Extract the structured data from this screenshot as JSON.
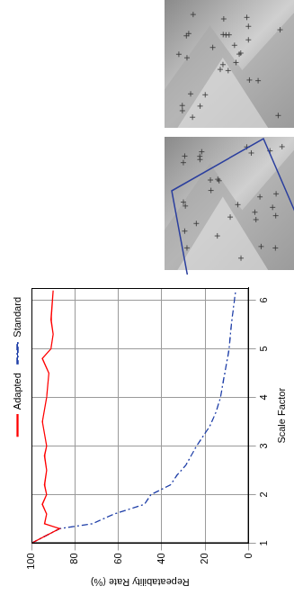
{
  "chart_data": {
    "type": "line",
    "x_label": "Scale Factor",
    "y_label": "Repeatability Rate (%)",
    "xlim": [
      1,
      6.25
    ],
    "xticks": [
      1,
      2,
      3,
      4,
      5,
      6
    ],
    "ylim": [
      0,
      100
    ],
    "yticks": [
      0,
      20,
      40,
      60,
      80,
      100
    ],
    "grid": true,
    "legend": "top-right",
    "series": [
      {
        "name": "Adapted",
        "color": "#ff0000",
        "line_style": "solid",
        "x": [
          1.0,
          1.3,
          1.4,
          1.6,
          1.8,
          2.0,
          2.2,
          2.5,
          2.8,
          3.0,
          3.5,
          4.0,
          4.5,
          4.8,
          5.0,
          5.3,
          5.6,
          6.2
        ],
        "values": [
          100,
          87,
          94,
          93,
          95,
          93,
          94,
          93,
          94,
          93,
          95,
          93,
          92,
          95,
          91,
          90,
          91,
          90
        ]
      },
      {
        "name": "Standard",
        "color": "#1f3fa8",
        "line_style": "dashdot",
        "x": [
          1.0,
          1.3,
          1.4,
          1.6,
          1.8,
          2.0,
          2.2,
          2.4,
          2.6,
          3.0,
          3.4,
          3.7,
          4.0,
          4.5,
          5.0,
          5.5,
          6.2
        ],
        "values": [
          100,
          87,
          72,
          62,
          48,
          45,
          36,
          33,
          29,
          24,
          18,
          15,
          13,
          11,
          9,
          8,
          6
        ]
      }
    ]
  }
}
